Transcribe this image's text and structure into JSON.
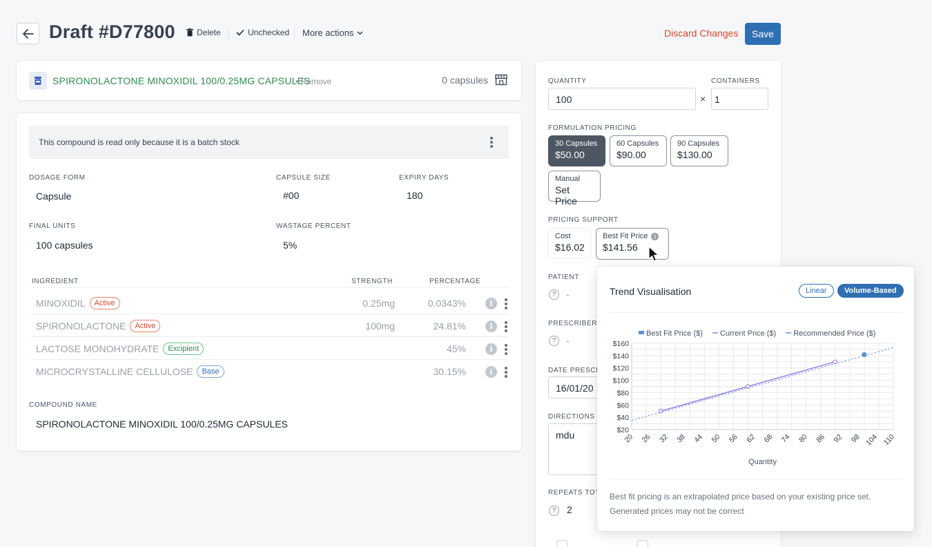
{
  "header": {
    "title": "Draft #D77800",
    "delete_label": "Delete",
    "unchecked_label": "Unchecked",
    "more_actions_label": "More actions",
    "discard_label": "Discard Changes",
    "save_label": "Save"
  },
  "product": {
    "name": "SPIRONOLACTONE MINOXIDIL 100/0.25MG CAPSULES",
    "remove_label": "Remove",
    "count": "0 capsules"
  },
  "compound": {
    "notice": "This compound is read only because it is a batch stock",
    "dosage_form_label": "DOSAGE FORM",
    "dosage_form": "Capsule",
    "capsule_size_label": "CAPSULE SIZE",
    "capsule_size": "#00",
    "expiry_days_label": "EXPIRY DAYS",
    "expiry_days": "180",
    "final_units_label": "FINAL UNITS",
    "final_units": "100 capsules",
    "wastage_label": "WASTAGE PERCENT",
    "wastage": "5%",
    "ingredient_header": "INGREDIENT",
    "strength_header": "STRENGTH",
    "percentage_header": "PERCENTAGE",
    "ingredients": [
      {
        "name": "MINOXIDIL",
        "badge": "Active",
        "strength": "0.25mg",
        "percentage": "0.0343%"
      },
      {
        "name": "SPIRONOLACTONE",
        "badge": "Active",
        "strength": "100mg",
        "percentage": "24.81%"
      },
      {
        "name": "LACTOSE MONOHYDRATE",
        "badge": "Excipient",
        "strength": "",
        "percentage": "45%"
      },
      {
        "name": "MICROCRYSTALLINE CELLULOSE",
        "badge": "Base",
        "strength": "",
        "percentage": "30.15%"
      }
    ],
    "compound_name_label": "COMPOUND NAME",
    "compound_name": "SPIRONOLACTONE MINOXIDIL 100/0.25MG CAPSULES"
  },
  "pricing": {
    "quantity_label": "QUANTITY",
    "quantity": "100",
    "times": "×",
    "containers_label": "CONTAINERS",
    "containers": "1",
    "formulation_label": "FORMULATION PRICING",
    "options": [
      {
        "label": "30 Capsules",
        "price": "$50.00"
      },
      {
        "label": "60 Capsules",
        "price": "$90.00"
      },
      {
        "label": "90 Capsules",
        "price": "$130.00"
      },
      {
        "label": "Manual",
        "price": "Set Price"
      }
    ],
    "support_label": "PRICING SUPPORT",
    "cost_label": "Cost",
    "cost": "$16.02",
    "best_fit_label": "Best Fit Price",
    "best_fit": "$141.56",
    "patient_label": "PATIENT",
    "patient": "-",
    "prescriber_label": "PRESCRIBER",
    "prescriber": "-",
    "date_label": "DATE PRESCR",
    "date": "16/01/20",
    "directions_label": "DIRECTIONS F",
    "directions": "mdu",
    "repeats_label": "REPEATS TOT",
    "repeats": "2",
    "info_glyph": "i"
  },
  "popover": {
    "title": "Trend Visualisation",
    "toggle_linear": "Linear",
    "toggle_volume": "Volume-Based",
    "note": "Best fit pricing is an extrapolated price based on your existing price set. Generated prices may not be correct"
  },
  "chart_data": {
    "type": "line",
    "xlabel": "Quantity",
    "ylabel": "",
    "x_ticks": [
      20,
      26,
      32,
      38,
      44,
      50,
      56,
      62,
      68,
      74,
      80,
      86,
      92,
      98,
      104,
      110
    ],
    "y_ticks": [
      20,
      40,
      60,
      80,
      100,
      120,
      140,
      160
    ],
    "y_tick_labels": [
      "$20",
      "$40",
      "$60",
      "$80",
      "$100",
      "$120",
      "$140",
      "$160"
    ],
    "xlim": [
      20,
      110
    ],
    "ylim": [
      20,
      160
    ],
    "legend": [
      "Best Fit Price ($)",
      "Current Price ($)",
      "Recommended Price ($)"
    ],
    "legend_position": "top",
    "grid": true,
    "series": [
      {
        "name": "Best Fit Price ($)",
        "kind": "point",
        "color": "#5b8fd6",
        "points": [
          [
            100,
            141.56
          ]
        ]
      },
      {
        "name": "Current Price ($)",
        "kind": "solid",
        "color": "#9b7fe0",
        "points": [
          [
            30,
            50
          ],
          [
            60,
            90
          ],
          [
            90,
            130
          ]
        ]
      },
      {
        "name": "Recommended Price ($)",
        "kind": "dashed",
        "color": "#5b8fd6",
        "points": [
          [
            20,
            35
          ],
          [
            110,
            153
          ]
        ]
      }
    ]
  },
  "colors": {
    "accent": "#2f6fb3",
    "danger": "#d7472b",
    "success": "#2e8a52"
  }
}
